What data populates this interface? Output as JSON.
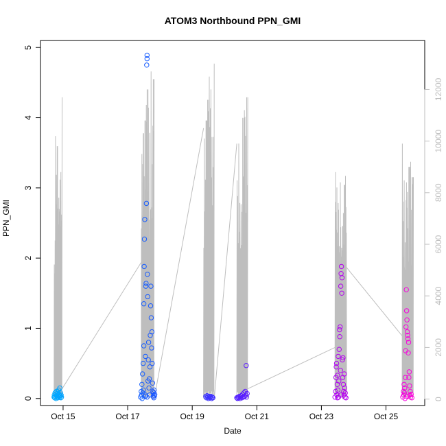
{
  "chart_data": {
    "type": "scatter",
    "title": "ATOM3 Northbound PPN_GMI",
    "xlabel": "Date",
    "ylabel": "PPN_GMI",
    "x_ticks": [
      "Oct 15",
      "Oct 17",
      "Oct 19",
      "Oct 21",
      "Oct 23",
      "Oct 25"
    ],
    "x_range": [
      14.3,
      26.2
    ],
    "ylim": [
      -0.1,
      5.1
    ],
    "y_ticks": [
      0,
      1,
      2,
      3,
      4,
      5
    ],
    "y2_ticks": [
      0,
      2000,
      4000,
      6000,
      8000,
      10000,
      12000
    ],
    "y2lim": [
      -250,
      13900
    ],
    "secondary_color": "#bebebe",
    "point_colors": {
      "start": "#00aaff",
      "mid_blue": "#1e46ff",
      "mid_purple": "#8200ff",
      "end": "#ff00dc"
    },
    "series": [
      {
        "points": [
          [
            14.72,
            0.02
          ],
          [
            14.73,
            0.05
          ],
          [
            14.74,
            0.01
          ],
          [
            14.75,
            0.08
          ],
          [
            14.76,
            0.03
          ],
          [
            14.77,
            0.06
          ],
          [
            14.78,
            0.0
          ],
          [
            14.79,
            0.1
          ],
          [
            14.8,
            0.04
          ],
          [
            14.81,
            0.07
          ],
          [
            14.82,
            0.02
          ],
          [
            14.83,
            0.09
          ],
          [
            14.84,
            0.01
          ],
          [
            14.85,
            0.05
          ],
          [
            14.86,
            0.12
          ],
          [
            14.87,
            0.03
          ],
          [
            14.88,
            0.06
          ],
          [
            14.89,
            0.02
          ],
          [
            14.9,
            0.15
          ],
          [
            14.91,
            0.04
          ],
          [
            14.92,
            0.08
          ],
          [
            14.93,
            0.01
          ],
          [
            14.94,
            0.05
          ],
          [
            14.95,
            0.02
          ],
          [
            17.4,
            0.02
          ],
          [
            17.42,
            0.1
          ],
          [
            17.43,
            0.05
          ],
          [
            17.44,
            0.2
          ],
          [
            17.45,
            0.0
          ],
          [
            17.46,
            0.35
          ],
          [
            17.47,
            0.08
          ],
          [
            17.48,
            0.5
          ],
          [
            17.49,
            0.12
          ],
          [
            17.5,
            0.75
          ],
          [
            17.5,
            1.35
          ],
          [
            17.51,
            1.88
          ],
          [
            17.52,
            2.27
          ],
          [
            17.53,
            2.55
          ],
          [
            17.54,
            0.03
          ],
          [
            17.55,
            0.6
          ],
          [
            17.56,
            1.6
          ],
          [
            17.57,
            1.64
          ],
          [
            17.58,
            2.78
          ],
          [
            17.59,
            4.75
          ],
          [
            17.6,
            4.89
          ],
          [
            17.6,
            4.84
          ],
          [
            17.61,
            1.77
          ],
          [
            17.62,
            1.45
          ],
          [
            17.63,
            0.25
          ],
          [
            17.64,
            0.55
          ],
          [
            17.65,
            0.8
          ],
          [
            17.66,
            0.15
          ],
          [
            17.67,
            0.28
          ],
          [
            17.68,
            0.05
          ],
          [
            17.69,
            0.45
          ],
          [
            17.7,
            0.9
          ],
          [
            17.71,
            1.32
          ],
          [
            17.72,
            1.6
          ],
          [
            17.73,
            1.15
          ],
          [
            17.74,
            0.72
          ],
          [
            17.75,
            0.95
          ],
          [
            17.76,
            0.5
          ],
          [
            17.77,
            0.22
          ],
          [
            17.78,
            0.1
          ],
          [
            17.79,
            0.03
          ],
          [
            17.8,
            0.08
          ],
          [
            17.81,
            0.01
          ],
          [
            17.82,
            0.12
          ],
          [
            17.83,
            0.04
          ],
          [
            17.84,
            0.06
          ],
          [
            17.55,
            0.05
          ],
          [
            17.6,
            0.02
          ],
          [
            19.42,
            0.03
          ],
          [
            19.44,
            0.01
          ],
          [
            19.46,
            0.04
          ],
          [
            19.48,
            0.02
          ],
          [
            19.5,
            0.0
          ],
          [
            19.52,
            0.03
          ],
          [
            19.54,
            0.01
          ],
          [
            19.56,
            0.02
          ],
          [
            19.58,
            0.03
          ],
          [
            19.6,
            0.0
          ],
          [
            19.62,
            0.02
          ],
          [
            19.64,
            0.01
          ],
          [
            20.38,
            0.01
          ],
          [
            20.4,
            0.0
          ],
          [
            20.42,
            0.02
          ],
          [
            20.44,
            0.01
          ],
          [
            20.46,
            0.03
          ],
          [
            20.48,
            0.0
          ],
          [
            20.5,
            0.02
          ],
          [
            20.52,
            0.04
          ],
          [
            20.54,
            0.01
          ],
          [
            20.56,
            0.06
          ],
          [
            20.58,
            0.02
          ],
          [
            20.6,
            0.08
          ],
          [
            20.62,
            0.03
          ],
          [
            20.64,
            0.1
          ],
          [
            20.66,
            0.05
          ],
          [
            20.67,
            0.47
          ],
          [
            20.68,
            0.02
          ],
          [
            20.7,
            0.07
          ],
          [
            23.42,
            0.02
          ],
          [
            23.44,
            0.1
          ],
          [
            23.45,
            0.3
          ],
          [
            23.46,
            0.45
          ],
          [
            23.47,
            0.5
          ],
          [
            23.48,
            0.05
          ],
          [
            23.49,
            0.2
          ],
          [
            23.5,
            0.33
          ],
          [
            23.51,
            0.12
          ],
          [
            23.52,
            0.6
          ],
          [
            23.53,
            0.02
          ],
          [
            23.54,
            0.25
          ],
          [
            23.55,
            0.7
          ],
          [
            23.56,
            0.98
          ],
          [
            23.57,
            0.88
          ],
          [
            23.58,
            1.02
          ],
          [
            23.59,
            0.4
          ],
          [
            23.6,
            1.6
          ],
          [
            23.61,
            1.78
          ],
          [
            23.62,
            1.88
          ],
          [
            23.63,
            1.5
          ],
          [
            23.64,
            1.72
          ],
          [
            23.65,
            0.55
          ],
          [
            23.66,
            0.3
          ],
          [
            23.67,
            0.58
          ],
          [
            23.68,
            0.2
          ],
          [
            23.69,
            0.1
          ],
          [
            23.7,
            0.05
          ],
          [
            23.71,
            0.35
          ],
          [
            23.72,
            0.15
          ],
          [
            23.73,
            0.02
          ],
          [
            23.74,
            0.08
          ],
          [
            23.76,
            0.01
          ],
          [
            23.6,
            0.05
          ],
          [
            23.5,
            0.01
          ],
          [
            25.52,
            0.02
          ],
          [
            25.54,
            0.1
          ],
          [
            25.55,
            0.05
          ],
          [
            25.56,
            0.2
          ],
          [
            25.57,
            0.08
          ],
          [
            25.58,
            0.15
          ],
          [
            25.59,
            0.0
          ],
          [
            25.6,
            0.3
          ],
          [
            25.61,
            0.68
          ],
          [
            25.62,
            1.02
          ],
          [
            25.63,
            1.55
          ],
          [
            25.64,
            1.25
          ],
          [
            25.65,
            1.12
          ],
          [
            25.66,
            0.95
          ],
          [
            25.67,
            0.9
          ],
          [
            25.68,
            0.85
          ],
          [
            25.69,
            0.65
          ],
          [
            25.7,
            0.8
          ],
          [
            25.71,
            0.3
          ],
          [
            25.72,
            0.38
          ],
          [
            25.73,
            0.18
          ],
          [
            25.74,
            0.05
          ],
          [
            25.75,
            0.1
          ],
          [
            25.76,
            0.02
          ],
          [
            25.78,
            0.06
          ],
          [
            25.8,
            0.01
          ],
          [
            25.65,
            0.03
          ]
        ]
      }
    ],
    "secondary_series": {
      "bursts": [
        {
          "start": 14.72,
          "end": 14.97,
          "peaks": [
            6500,
            10200,
            9800,
            10000,
            10400,
            8800,
            11700
          ],
          "spikes": 40
        },
        {
          "start": 17.42,
          "end": 17.82,
          "peaks": [
            9500,
            10300,
            10800,
            11400,
            12000,
            11100,
            12700,
            11900,
            12400
          ],
          "spikes": 60
        },
        {
          "start": 19.35,
          "end": 19.68,
          "peaks": [
            10100,
            10800,
            11600,
            12500,
            12000,
            13000
          ],
          "spikes": 40
        },
        {
          "start": 20.38,
          "end": 20.72,
          "peaks": [
            9600,
            10400,
            10000,
            10900,
            11200,
            11700
          ],
          "spikes": 40
        },
        {
          "start": 23.42,
          "end": 23.78,
          "peaks": [
            8800,
            8200,
            7600,
            8400,
            8900,
            8700,
            8300,
            9000
          ],
          "spikes": 55
        },
        {
          "start": 25.5,
          "end": 25.85,
          "peaks": [
            9900,
            8700,
            8400,
            8900,
            9000,
            9200,
            8600
          ],
          "spikes": 50
        }
      ],
      "connectors": [
        [
          14.97,
          400,
          17.42,
          5300
        ],
        [
          17.82,
          0,
          19.35,
          10500
        ],
        [
          19.68,
          0,
          20.38,
          9900
        ],
        [
          20.72,
          400,
          23.42,
          2000
        ],
        [
          23.78,
          5100,
          25.5,
          2450
        ]
      ]
    }
  }
}
